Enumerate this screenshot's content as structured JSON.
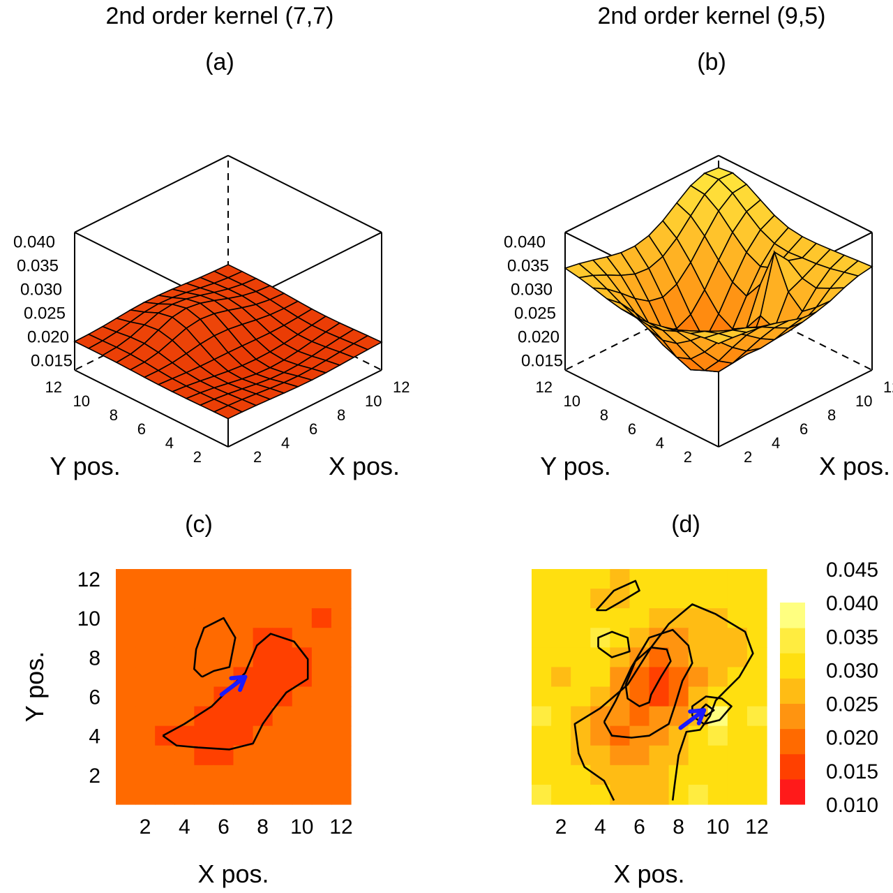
{
  "chart_data": [
    {
      "panel": "(a)",
      "type": "surface",
      "title": "2nd order kernel (7,7)",
      "xlabel": "X pos.",
      "ylabel": "Y pos.",
      "x_ticks": [
        "2",
        "4",
        "6",
        "8",
        "10",
        "12"
      ],
      "y_ticks": [
        "2",
        "4",
        "6",
        "8",
        "10",
        "12"
      ],
      "z_ticks": [
        "0.040",
        "0.035",
        "0.030",
        "0.025",
        "0.020",
        "0.015"
      ],
      "xlim": [
        1,
        12
      ],
      "ylim": [
        1,
        12
      ],
      "zlim": [
        0.013,
        0.042
      ],
      "features": {
        "base": 0.019,
        "bumps": [
          [
            7,
            8,
            0.006,
            2.2
          ],
          [
            5,
            9,
            0.002,
            1.5
          ]
        ],
        "dips": [
          [
            7,
            6,
            -0.005,
            2.6
          ]
        ]
      }
    },
    {
      "panel": "(b)",
      "type": "surface",
      "title": "2nd order kernel (9,5)",
      "xlabel": "X pos.",
      "ylabel": "Y pos.",
      "x_ticks": [
        "2",
        "4",
        "6",
        "8",
        "10",
        "12"
      ],
      "y_ticks": [
        "2",
        "4",
        "6",
        "8",
        "10",
        "12"
      ],
      "z_ticks": [
        "0.040",
        "0.035",
        "0.030",
        "0.025",
        "0.020",
        "0.015"
      ],
      "xlim": [
        1,
        12
      ],
      "ylim": [
        1,
        12
      ],
      "zlim": [
        0.013,
        0.042
      ],
      "features": {
        "base": 0.035,
        "bumps": [
          [
            11,
            11,
            0.006,
            2.0
          ],
          [
            9,
            5,
            0.012,
            0.7
          ]
        ],
        "dips": [
          [
            6,
            7,
            -0.022,
            2.6
          ],
          [
            8,
            3,
            -0.006,
            1.6
          ]
        ]
      }
    },
    {
      "panel": "(c)",
      "type": "heatmap",
      "xlabel": "X pos.",
      "ylabel": "Y pos.",
      "x_ticks": [
        2,
        4,
        6,
        8,
        10,
        12
      ],
      "y_ticks": [
        2,
        4,
        6,
        8,
        10,
        12
      ],
      "grid_size": 12,
      "values_rows_top_to_bottom": [
        [
          0.02,
          0.02,
          0.02,
          0.02,
          0.02,
          0.02,
          0.02,
          0.02,
          0.02,
          0.02,
          0.02,
          0.02
        ],
        [
          0.02,
          0.02,
          0.02,
          0.02,
          0.02,
          0.02,
          0.02,
          0.02,
          0.02,
          0.02,
          0.02,
          0.02
        ],
        [
          0.02,
          0.02,
          0.02,
          0.02,
          0.024,
          0.024,
          0.02,
          0.02,
          0.02,
          0.02,
          0.019,
          0.02
        ],
        [
          0.02,
          0.02,
          0.02,
          0.02,
          0.024,
          0.024,
          0.02,
          0.018,
          0.018,
          0.02,
          0.02,
          0.02
        ],
        [
          0.02,
          0.02,
          0.02,
          0.021,
          0.024,
          0.024,
          0.02,
          0.018,
          0.018,
          0.018,
          0.02,
          0.02
        ],
        [
          0.02,
          0.02,
          0.02,
          0.02,
          0.02,
          0.02,
          0.018,
          0.018,
          0.018,
          0.018,
          0.02,
          0.02
        ],
        [
          0.02,
          0.02,
          0.02,
          0.02,
          0.02,
          0.018,
          0.018,
          0.018,
          0.018,
          0.02,
          0.02,
          0.02
        ],
        [
          0.023,
          0.02,
          0.02,
          0.02,
          0.018,
          0.018,
          0.018,
          0.018,
          0.02,
          0.02,
          0.02,
          0.02
        ],
        [
          0.02,
          0.02,
          0.019,
          0.018,
          0.018,
          0.018,
          0.018,
          0.02,
          0.02,
          0.02,
          0.02,
          0.02
        ],
        [
          0.02,
          0.02,
          0.02,
          0.02,
          0.019,
          0.019,
          0.02,
          0.02,
          0.02,
          0.02,
          0.02,
          0.02
        ],
        [
          0.02,
          0.02,
          0.02,
          0.02,
          0.02,
          0.02,
          0.02,
          0.02,
          0.02,
          0.02,
          0.02,
          0.02
        ],
        [
          0.023,
          0.02,
          0.02,
          0.02,
          0.02,
          0.02,
          0.02,
          0.02,
          0.02,
          0.02,
          0.02,
          0.02
        ]
      ],
      "contours": [
        [
          [
            4.9,
            7.0
          ],
          [
            5.5,
            7.3
          ],
          [
            6.3,
            7.5
          ],
          [
            6.6,
            9.0
          ],
          [
            6.0,
            10.0
          ],
          [
            5.0,
            9.5
          ],
          [
            4.6,
            8.4
          ],
          [
            4.5,
            7.4
          ],
          [
            4.9,
            7.0
          ]
        ],
        [
          [
            2.9,
            4.0
          ],
          [
            4.0,
            4.6
          ],
          [
            5.4,
            5.5
          ],
          [
            6.3,
            6.4
          ],
          [
            7.1,
            7.2
          ],
          [
            7.7,
            8.6
          ],
          [
            8.4,
            9.2
          ],
          [
            9.6,
            8.8
          ],
          [
            10.3,
            7.9
          ],
          [
            10.3,
            6.9
          ],
          [
            9.2,
            6.2
          ],
          [
            8.5,
            5.3
          ],
          [
            8.0,
            4.6
          ],
          [
            7.5,
            3.6
          ],
          [
            6.3,
            3.3
          ],
          [
            4.7,
            3.4
          ],
          [
            3.6,
            3.5
          ],
          [
            2.9,
            4.0
          ]
        ]
      ],
      "arrow": {
        "from": [
          5.9,
          6.1
        ],
        "to": [
          7.1,
          7.0
        ],
        "color": "#1a1aff"
      }
    },
    {
      "panel": "(d)",
      "type": "heatmap",
      "xlabel": "X pos.",
      "ylabel": "",
      "x_ticks": [
        2,
        4,
        6,
        8,
        10,
        12
      ],
      "grid_size": 12,
      "values_rows_top_to_bottom": [
        [
          0.035,
          0.035,
          0.035,
          0.035,
          0.03,
          0.035,
          0.035,
          0.035,
          0.035,
          0.035,
          0.035,
          0.035
        ],
        [
          0.035,
          0.035,
          0.035,
          0.03,
          0.03,
          0.035,
          0.035,
          0.035,
          0.035,
          0.035,
          0.035,
          0.035
        ],
        [
          0.035,
          0.035,
          0.035,
          0.035,
          0.035,
          0.035,
          0.03,
          0.03,
          0.03,
          0.03,
          0.035,
          0.035
        ],
        [
          0.035,
          0.035,
          0.035,
          0.04,
          0.035,
          0.03,
          0.025,
          0.025,
          0.03,
          0.03,
          0.03,
          0.035
        ],
        [
          0.035,
          0.035,
          0.035,
          0.035,
          0.03,
          0.025,
          0.02,
          0.025,
          0.03,
          0.03,
          0.03,
          0.035
        ],
        [
          0.035,
          0.03,
          0.035,
          0.035,
          0.025,
          0.02,
          0.015,
          0.02,
          0.025,
          0.03,
          0.035,
          0.035
        ],
        [
          0.035,
          0.035,
          0.035,
          0.03,
          0.025,
          0.02,
          0.015,
          0.02,
          0.03,
          0.035,
          0.035,
          0.035
        ],
        [
          0.04,
          0.035,
          0.03,
          0.025,
          0.025,
          0.02,
          0.025,
          0.025,
          0.03,
          0.045,
          0.035,
          0.04
        ],
        [
          0.035,
          0.035,
          0.03,
          0.025,
          0.02,
          0.025,
          0.025,
          0.03,
          0.035,
          0.04,
          0.035,
          0.035
        ],
        [
          0.035,
          0.035,
          0.03,
          0.03,
          0.025,
          0.025,
          0.03,
          0.03,
          0.035,
          0.035,
          0.035,
          0.035
        ],
        [
          0.035,
          0.035,
          0.035,
          0.03,
          0.03,
          0.03,
          0.03,
          0.035,
          0.035,
          0.035,
          0.035,
          0.035
        ],
        [
          0.04,
          0.035,
          0.035,
          0.035,
          0.03,
          0.03,
          0.03,
          0.035,
          0.04,
          0.035,
          0.035,
          0.035
        ]
      ],
      "contours": [
        [
          [
            3.8,
            10.4
          ],
          [
            4.7,
            11.4
          ],
          [
            5.8,
            11.9
          ],
          [
            6.0,
            11.4
          ],
          [
            5.0,
            10.8
          ],
          [
            4.3,
            10.4
          ],
          [
            3.8,
            10.4
          ]
        ],
        [
          [
            3.9,
            8.5
          ],
          [
            4.6,
            8.0
          ],
          [
            5.5,
            8.3
          ],
          [
            5.4,
            9.0
          ],
          [
            4.6,
            9.3
          ],
          [
            3.9,
            9.0
          ],
          [
            3.9,
            8.5
          ]
        ],
        [
          [
            4.7,
            0.7
          ],
          [
            4.2,
            1.7
          ],
          [
            3.2,
            2.4
          ],
          [
            2.9,
            3.1
          ],
          [
            2.7,
            4.6
          ],
          [
            4.0,
            5.4
          ],
          [
            5.4,
            6.6
          ],
          [
            6.6,
            8.5
          ],
          [
            7.5,
            9.7
          ],
          [
            8.7,
            10.7
          ],
          [
            9.9,
            10.2
          ],
          [
            11.4,
            9.3
          ],
          [
            11.8,
            8.2
          ],
          [
            11.1,
            7.0
          ],
          [
            10.4,
            6.3
          ],
          [
            9.9,
            5.8
          ],
          [
            9.6,
            5.0
          ],
          [
            9.1,
            4.3
          ],
          [
            8.4,
            4.2
          ],
          [
            8.0,
            3.0
          ],
          [
            7.8,
            1.5
          ],
          [
            7.7,
            0.7
          ]
        ],
        [
          [
            4.2,
            4.7
          ],
          [
            4.8,
            5.8
          ],
          [
            5.6,
            7.5
          ],
          [
            6.5,
            9.0
          ],
          [
            7.7,
            9.4
          ],
          [
            8.5,
            8.6
          ],
          [
            8.7,
            7.7
          ],
          [
            8.2,
            6.8
          ],
          [
            7.8,
            5.5
          ],
          [
            7.5,
            4.6
          ],
          [
            7.0,
            4.3
          ],
          [
            6.5,
            4.0
          ],
          [
            5.6,
            3.9
          ],
          [
            4.6,
            4.0
          ],
          [
            4.2,
            4.7
          ]
        ],
        [
          [
            5.3,
            6.6
          ],
          [
            5.8,
            7.8
          ],
          [
            6.6,
            8.5
          ],
          [
            7.4,
            8.4
          ],
          [
            7.6,
            7.8
          ],
          [
            7.1,
            7.0
          ],
          [
            6.6,
            6.1
          ],
          [
            6.5,
            5.7
          ],
          [
            6.0,
            5.5
          ],
          [
            5.4,
            5.9
          ],
          [
            5.3,
            6.6
          ]
        ],
        [
          [
            8.7,
            5.0
          ],
          [
            9.3,
            4.6
          ],
          [
            10.1,
            4.8
          ],
          [
            10.7,
            5.5
          ],
          [
            10.2,
            5.9
          ],
          [
            9.4,
            6.0
          ],
          [
            8.7,
            5.5
          ],
          [
            8.7,
            5.0
          ]
        ],
        [
          [
            9.0,
            5.2
          ],
          [
            9.4,
            5.0
          ],
          [
            9.8,
            5.3
          ],
          [
            9.4,
            5.6
          ],
          [
            9.0,
            5.2
          ]
        ]
      ],
      "arrow": {
        "from": [
          8.1,
          4.4
        ],
        "to": [
          9.3,
          5.3
        ],
        "color": "#1a1aff"
      }
    }
  ],
  "colorbar": {
    "labels": [
      "0.045",
      "0.040",
      "0.035",
      "0.030",
      "0.025",
      "0.020",
      "0.015",
      "0.010"
    ],
    "colors": [
      "#ff1a1a",
      "#ff4000",
      "#ff6a00",
      "#ff9410",
      "#ffbc14",
      "#ffdf10",
      "#ffec40",
      "#ffff80"
    ]
  },
  "colors": {
    "surface_a_low": "#e63000",
    "surface_a_high": "#ff7a20",
    "surface_b_low": "#ff6a00",
    "surface_b_high": "#ffee40",
    "grid_line": "#000000"
  }
}
